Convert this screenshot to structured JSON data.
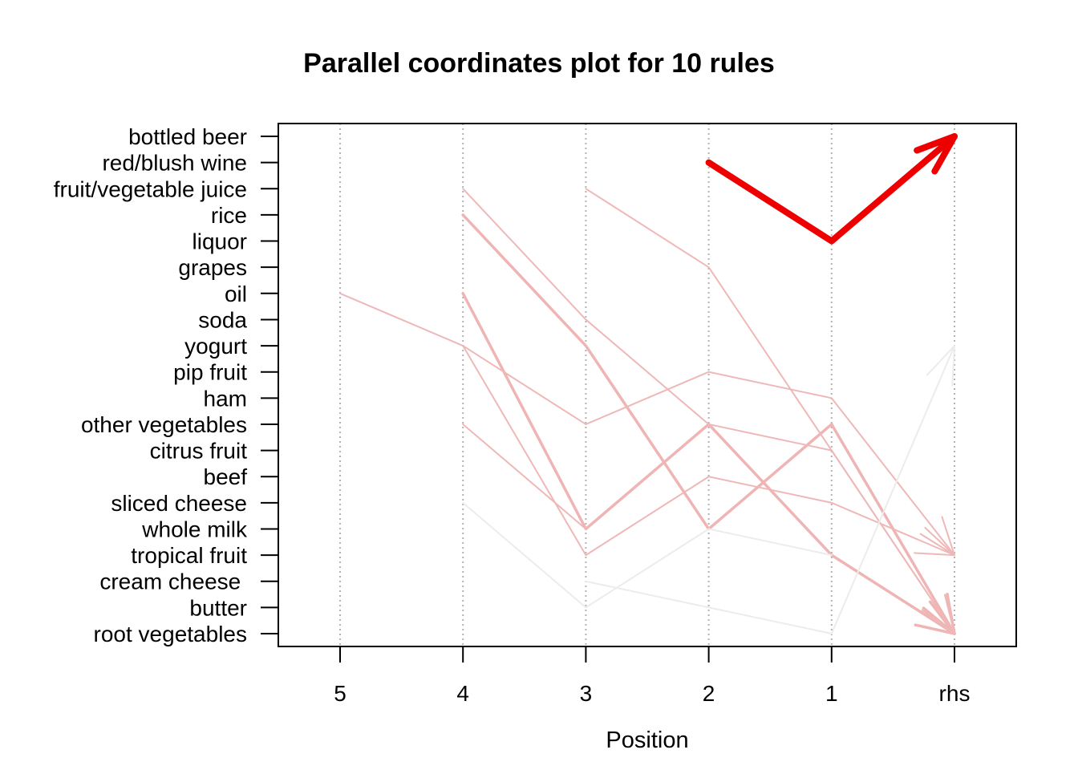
{
  "chart_data": {
    "type": "parallel-coordinates",
    "title": "Parallel coordinates plot for 10 rules",
    "xlabel": "Position",
    "x_positions": [
      "5",
      "4",
      "3",
      "2",
      "1",
      "rhs"
    ],
    "items": [
      "root vegetables",
      "butter",
      "cream cheese ",
      "tropical fruit",
      "whole milk",
      "sliced cheese",
      "beef",
      "citrus fruit",
      "other vegetables",
      "ham",
      "pip fruit",
      "yogurt",
      "soda",
      "oil",
      "grapes",
      "liquor",
      "rice",
      "fruit/vegetable juice",
      "red/blush wine",
      "bottled beer"
    ],
    "grid": true,
    "rules": [
      {
        "path": [
          {
            "pos": "2",
            "item": "red/blush wine"
          },
          {
            "pos": "1",
            "item": "liquor"
          },
          {
            "pos": "rhs",
            "item": "bottled beer"
          }
        ],
        "color": "#ee0000",
        "width": 8
      },
      {
        "path": [
          {
            "pos": "4",
            "item": "rice"
          },
          {
            "pos": "3",
            "item": "yogurt"
          },
          {
            "pos": "2",
            "item": "whole milk"
          },
          {
            "pos": "1",
            "item": "other vegetables"
          },
          {
            "pos": "rhs",
            "item": "root vegetables"
          }
        ],
        "color": "#efb4b4",
        "width": 3.5
      },
      {
        "path": [
          {
            "pos": "4",
            "item": "oil"
          },
          {
            "pos": "3",
            "item": "whole milk"
          },
          {
            "pos": "2",
            "item": "other vegetables"
          },
          {
            "pos": "1",
            "item": "tropical fruit"
          },
          {
            "pos": "rhs",
            "item": "root vegetables"
          }
        ],
        "color": "#efb4b4",
        "width": 3.5
      },
      {
        "path": [
          {
            "pos": "4",
            "item": "fruit/vegetable juice"
          },
          {
            "pos": "3",
            "item": "soda"
          },
          {
            "pos": "2",
            "item": "other vegetables"
          },
          {
            "pos": "1",
            "item": "citrus fruit"
          },
          {
            "pos": "rhs",
            "item": "root vegetables"
          }
        ],
        "color": "#efb8b8",
        "width": 2
      },
      {
        "path": [
          {
            "pos": "3",
            "item": "fruit/vegetable juice"
          },
          {
            "pos": "2",
            "item": "grapes"
          },
          {
            "pos": "1",
            "item": "citrus fruit"
          },
          {
            "pos": "rhs",
            "item": "root vegetables"
          }
        ],
        "color": "#efb8b8",
        "width": 2
      },
      {
        "path": [
          {
            "pos": "5",
            "item": "oil"
          },
          {
            "pos": "4",
            "item": "yogurt"
          },
          {
            "pos": "3",
            "item": "other vegetables"
          },
          {
            "pos": "2",
            "item": "pip fruit"
          },
          {
            "pos": "1",
            "item": "ham"
          },
          {
            "pos": "rhs",
            "item": "tropical fruit"
          }
        ],
        "color": "#efb8b8",
        "width": 2
      },
      {
        "path": [
          {
            "pos": "4",
            "item": "yogurt"
          },
          {
            "pos": "3",
            "item": "tropical fruit"
          },
          {
            "pos": "2",
            "item": "beef"
          },
          {
            "pos": "1",
            "item": "sliced cheese"
          },
          {
            "pos": "rhs",
            "item": "tropical fruit"
          }
        ],
        "color": "#efb8b8",
        "width": 2
      },
      {
        "path": [
          {
            "pos": "4",
            "item": "other vegetables"
          },
          {
            "pos": "3",
            "item": "whole milk"
          }
        ],
        "color": "#efb8b8",
        "width": 2
      },
      {
        "path": [
          {
            "pos": "4",
            "item": "sliced cheese"
          },
          {
            "pos": "3",
            "item": "butter"
          },
          {
            "pos": "2",
            "item": "whole milk"
          },
          {
            "pos": "1",
            "item": "tropical fruit"
          }
        ],
        "color": "#ececec",
        "width": 2
      },
      {
        "path": [
          {
            "pos": "3",
            "item": "cream cheese "
          },
          {
            "pos": "2",
            "item": "butter"
          },
          {
            "pos": "1",
            "item": "root vegetables"
          },
          {
            "pos": "rhs",
            "item": "yogurt"
          }
        ],
        "color": "#ececec",
        "width": 2
      }
    ]
  }
}
